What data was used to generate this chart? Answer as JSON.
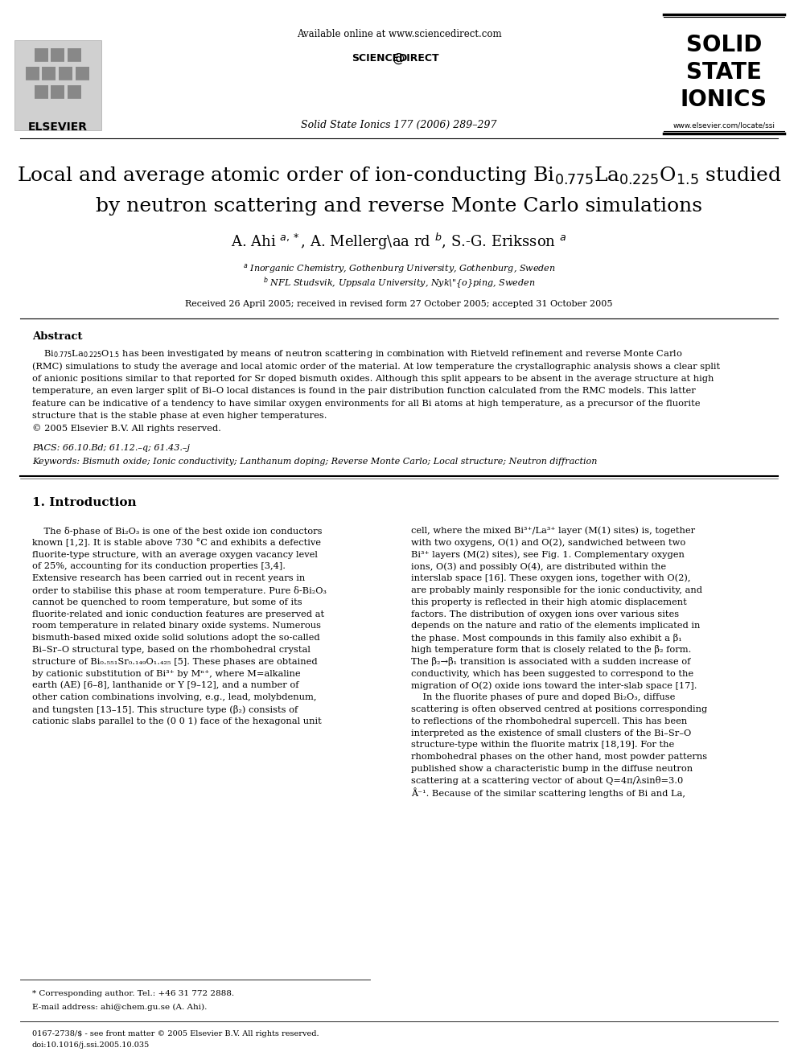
{
  "available_online": "Available online at www.sciencedirect.com",
  "journal_name": "Solid State Ionics 177 (2006) 289–297",
  "journal_url": "www.elsevier.com/locate/ssi",
  "elsevier_text": "ELSEVIER",
  "received": "Received 26 April 2005; received in revised form 27 October 2005; accepted 31 October 2005",
  "abstract_title": "Abstract",
  "pacs": "PACS: 66.10.Bd; 61.12.–q; 61.43.–j",
  "keywords": "Keywords: Bismuth oxide; Ionic conductivity; Lanthanum doping; Reverse Monte Carlo; Local structure; Neutron diffraction",
  "section1_title": "1. Introduction",
  "footnote_corresponding": "* Corresponding author. Tel.: +46 31 772 2888.",
  "footnote_email": "E-mail address: ahi@chem.gu.se (A. Ahi).",
  "footnote_issn": "0167-2738/$ - see front matter © 2005 Elsevier B.V. All rights reserved.",
  "footnote_doi": "doi:10.1016/j.ssi.2005.10.035",
  "bg_color": "#ffffff",
  "text_color": "#000000"
}
